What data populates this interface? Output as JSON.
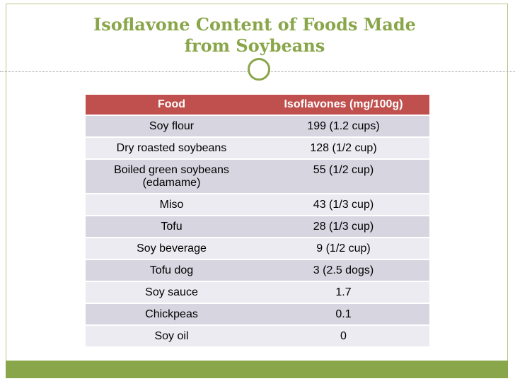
{
  "slide": {
    "title_line1": "Isoflavone Content of Foods Made",
    "title_line2": "from Soybeans"
  },
  "table": {
    "headers": [
      "Food",
      "Isoflavones (mg/100g)"
    ],
    "rows": [
      {
        "food": "Soy flour",
        "food2": "",
        "value": "199  (1.2 cups)"
      },
      {
        "food": "Dry roasted soybeans",
        "food2": "",
        "value": "128  (1/2 cup)"
      },
      {
        "food": "Boiled green soybeans",
        "food2": "(edamame)",
        "value": "55  (1/2 cup)"
      },
      {
        "food": "Miso",
        "food2": "",
        "value": "43  (1/3 cup)"
      },
      {
        "food": "Tofu",
        "food2": "",
        "value": "28  (1/3 cup)"
      },
      {
        "food": "Soy beverage",
        "food2": "",
        "value": "9  (1/2 cup)"
      },
      {
        "food": "Tofu dog",
        "food2": "",
        "value": "3  (2.5 dogs)"
      },
      {
        "food": "Soy sauce",
        "food2": "",
        "value": "1.7"
      },
      {
        "food": "Chickpeas",
        "food2": "",
        "value": "0.1"
      },
      {
        "food": "Soy oil",
        "food2": "",
        "value": "0"
      }
    ]
  },
  "colors": {
    "accent_green": "#8aa64a",
    "header_red": "#c0504d",
    "row_odd": "#d6d5e0",
    "row_even": "#ecebf2"
  }
}
